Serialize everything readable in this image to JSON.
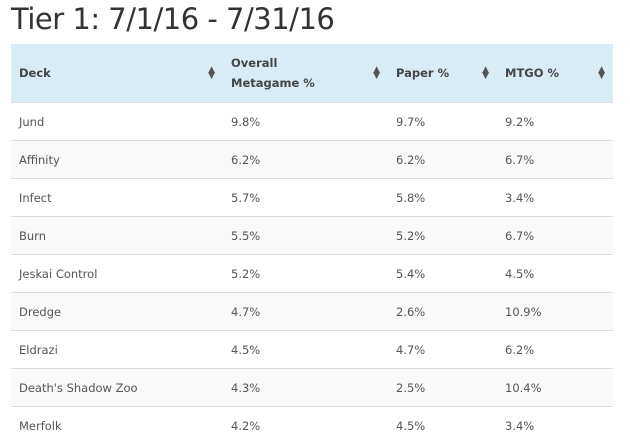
{
  "title": "Tier 1: 7/1/16 - 7/31/16",
  "columns": [
    "Deck",
    "Overall Metagame %",
    "Paper %",
    "MTGO %"
  ],
  "rows": [
    [
      "Jund",
      "9.8%",
      "9.7%",
      "9.2%"
    ],
    [
      "Affinity",
      "6.2%",
      "6.2%",
      "6.7%"
    ],
    [
      "Infect",
      "5.7%",
      "5.8%",
      "3.4%"
    ],
    [
      "Burn",
      "5.5%",
      "5.2%",
      "6.7%"
    ],
    [
      "Jeskai Control",
      "5.2%",
      "5.4%",
      "4.5%"
    ],
    [
      "Dredge",
      "4.7%",
      "2.6%",
      "10.9%"
    ],
    [
      "Eldrazi",
      "4.5%",
      "4.7%",
      "6.2%"
    ],
    [
      "Death's Shadow Zoo",
      "4.3%",
      "2.5%",
      "10.4%"
    ],
    [
      "Merfolk",
      "4.2%",
      "4.5%",
      "3.4%"
    ]
  ]
}
